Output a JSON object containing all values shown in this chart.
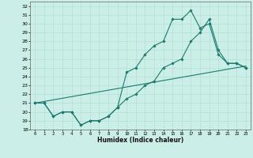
{
  "title": "",
  "xlabel": "Humidex (Indice chaleur)",
  "bg_color": "#cceee8",
  "grid_color": "#aaddcc",
  "line_color": "#1a7a6e",
  "xlim": [
    -0.5,
    23.5
  ],
  "ylim": [
    18,
    32.5
  ],
  "yticks": [
    18,
    19,
    20,
    21,
    22,
    23,
    24,
    25,
    26,
    27,
    28,
    29,
    30,
    31,
    32
  ],
  "xticks": [
    0,
    1,
    2,
    3,
    4,
    5,
    6,
    7,
    8,
    9,
    10,
    11,
    12,
    13,
    14,
    15,
    16,
    17,
    18,
    19,
    20,
    21,
    22,
    23
  ],
  "line1_x": [
    0,
    1,
    2,
    3,
    4,
    5,
    6,
    7,
    8,
    9,
    10,
    11,
    12,
    13,
    14,
    15,
    16,
    17,
    18,
    19,
    20,
    21,
    22,
    23
  ],
  "line1_y": [
    21,
    21,
    19.5,
    20,
    20,
    18.5,
    19,
    19,
    19.5,
    20.5,
    24.5,
    25,
    26.5,
    27.5,
    28,
    30.5,
    30.5,
    31.5,
    29.5,
    30,
    26.5,
    25.5,
    25.5,
    25
  ],
  "line2_x": [
    0,
    1,
    2,
    3,
    4,
    5,
    6,
    7,
    8,
    9,
    10,
    11,
    12,
    13,
    14,
    15,
    16,
    17,
    18,
    19,
    20,
    21,
    22,
    23
  ],
  "line2_y": [
    21,
    21,
    19.5,
    20,
    20,
    18.5,
    19,
    19,
    19.5,
    20.5,
    21.5,
    22,
    23,
    23.5,
    25,
    25.5,
    26,
    28,
    29,
    30.5,
    27,
    25.5,
    25.5,
    25
  ],
  "line3_x": [
    0,
    23
  ],
  "line3_y": [
    21,
    25.2
  ]
}
